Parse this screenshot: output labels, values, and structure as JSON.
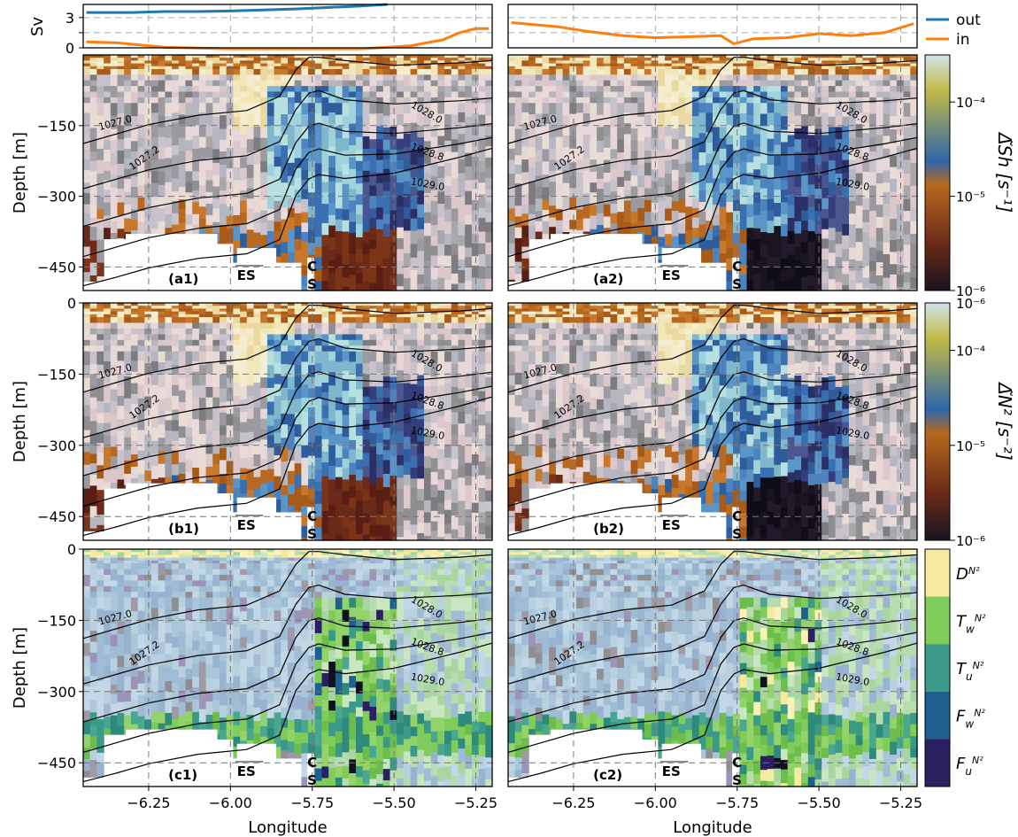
{
  "legend": {
    "out_label": "out",
    "in_label": "in",
    "out_color": "#1f77b4",
    "in_color": "#ff7f0e"
  },
  "chart_data": [
    {
      "type": "line",
      "id": "transport-left",
      "ylabel": "Sv",
      "yticks": [
        "0",
        "1.5",
        "3"
      ],
      "ylim": [
        0,
        4.3
      ],
      "series": [
        {
          "name": "out",
          "x": [
            -6.44,
            -6.3,
            -6.2,
            -6.1,
            -6.0,
            -5.9,
            -5.8,
            -5.7,
            -5.6,
            -5.52
          ],
          "y": [
            3.5,
            3.5,
            3.6,
            3.6,
            3.65,
            3.75,
            3.85,
            4.0,
            4.15,
            4.3
          ]
        },
        {
          "name": "in",
          "x": [
            -6.44,
            -6.35,
            -6.2,
            -6.0,
            -5.8,
            -5.6,
            -5.45,
            -5.35,
            -5.3,
            -5.25,
            -5.21
          ],
          "y": [
            0.6,
            0.5,
            0.05,
            -0.1,
            -0.1,
            -0.1,
            0.2,
            0.8,
            1.5,
            1.9,
            1.9
          ]
        }
      ]
    },
    {
      "type": "line",
      "id": "transport-right",
      "series": [
        {
          "name": "in",
          "x": [
            -6.44,
            -6.3,
            -6.2,
            -6.1,
            -6.0,
            -5.9,
            -5.8,
            -5.76,
            -5.7,
            -5.6,
            -5.5,
            -5.4,
            -5.3,
            -5.21
          ],
          "y": [
            2.5,
            2.1,
            1.6,
            1.2,
            1.0,
            1.1,
            1.2,
            0.4,
            0.9,
            1.0,
            1.4,
            1.2,
            1.5,
            2.4
          ]
        }
      ]
    },
    {
      "type": "heatmap",
      "panels": [
        {
          "label": "(a1)",
          "palette": "diverging"
        },
        {
          "label": "(a2)",
          "palette": "diverging"
        },
        {
          "label": "(b1)",
          "palette": "diverging"
        },
        {
          "label": "(b2)",
          "palette": "diverging"
        },
        {
          "label": "(c1)",
          "palette": "categorical"
        },
        {
          "label": "(c2)",
          "palette": "categorical"
        }
      ],
      "xticks": [
        "−6.25",
        "−6.00",
        "−5.75",
        "−5.50",
        "−5.25"
      ],
      "xlabel": "Longitude",
      "yticks": [
        "0",
        "−150",
        "−300",
        "−450"
      ],
      "ylabel": "Depth [m]",
      "xlim": [
        -6.45,
        -5.2
      ],
      "ylim": [
        -500,
        0
      ],
      "markers": {
        "es": "ES",
        "cs_top": "C",
        "cs_bottom": "S"
      },
      "contour_labels": [
        "1027.0",
        "1027.2",
        "1028.0",
        "1028.8",
        "1029.0"
      ],
      "colorbars": [
        {
          "label": "Δ̃Sh [s⁻¹]",
          "ticks": [
            "10⁻⁴",
            "10⁻⁵",
            "10⁻⁶"
          ]
        },
        {
          "label": "Δ̃N² [s⁻²]",
          "top_tick": "10⁻⁶",
          "ticks": [
            "10⁻⁴",
            "10⁻⁵",
            "10⁻⁶"
          ]
        },
        {
          "categories": [
            "D",
            "T_w",
            "T_u",
            "F_w",
            "F_u"
          ],
          "cat_sup": "N²",
          "cat_colors": [
            "#f6e9a0",
            "#7fcc5a",
            "#3a9a87",
            "#1d5f91",
            "#2a1f60"
          ]
        }
      ]
    }
  ]
}
